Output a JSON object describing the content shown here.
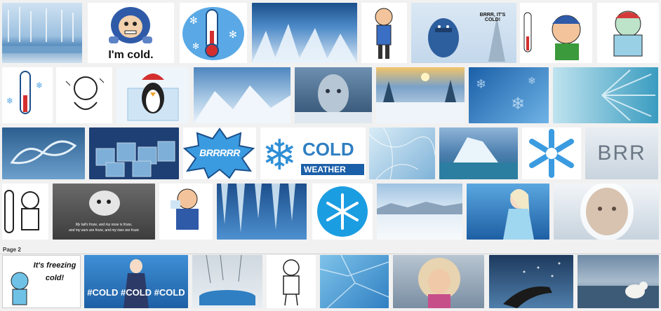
{
  "page_label": "Page 2",
  "captions": {
    "im_cold": "I'm cold.",
    "brrr_bubble": "BRRR, IT'S COLD!",
    "brrrrr": "BRRRRR",
    "cold": "COLD",
    "weather": "WEATHER",
    "brr_snow": "BRR",
    "movie_line1": "My tail's froze, and my nose is froze,",
    "movie_line2": "and my ears are froze, and my toes are froze",
    "freezing_line1": "It's freezing",
    "freezing_line2": "cold!",
    "hashtag": "#COLD #COLD #COLD"
  },
  "colors": {
    "ice_blue": "#2f7fc2",
    "sky_blue": "#7ab8e6",
    "snow": "#eef5fb",
    "deep_blue": "#1b4f8a"
  }
}
